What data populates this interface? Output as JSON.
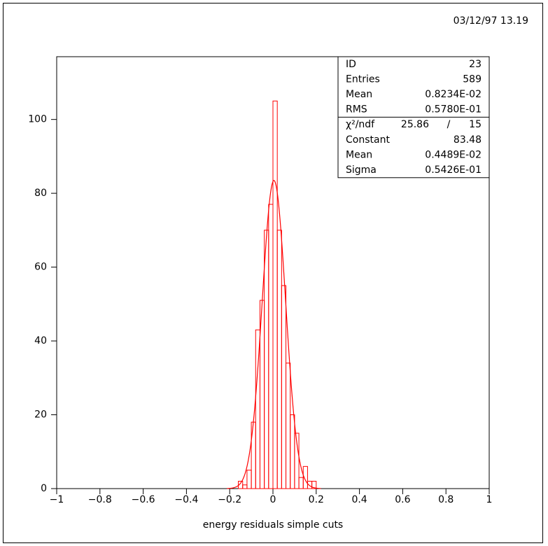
{
  "chart_data": {
    "type": "histogram",
    "timestamp": "03/12/97  13.19",
    "xlabel": "energy residuals simple cuts",
    "bins": [
      -0.16,
      -0.14,
      -0.12,
      -0.1,
      -0.08,
      -0.06,
      -0.04,
      -0.02,
      0,
      0.02,
      0.04,
      0.06,
      0.08,
      0.1,
      0.12,
      0.14,
      0.16,
      0.18,
      0.2
    ],
    "values": [
      2,
      1,
      5,
      18,
      43,
      51,
      70,
      77,
      105,
      70,
      55,
      34,
      20,
      15,
      3,
      6,
      2,
      2
    ],
    "color": "#ff0000",
    "xlim": [
      -1,
      1
    ],
    "xticks": [
      {
        "value": -1,
        "label": "−1"
      },
      {
        "value": -0.8,
        "label": "−0.8"
      },
      {
        "value": -0.6,
        "label": "−0.6"
      },
      {
        "value": -0.4,
        "label": "−0.4"
      },
      {
        "value": -0.2,
        "label": "−0.2"
      },
      0,
      0.2,
      0.4,
      0.6,
      0.8,
      1
    ],
    "ylim": [
      0,
      117
    ],
    "yticks": [
      0,
      20,
      40,
      60,
      80,
      100
    ],
    "stats": [
      {
        "name": "ID",
        "value": 23
      },
      {
        "name": "Entries",
        "value": 589
      },
      {
        "name": "Mean",
        "value": "0.8234E-02"
      },
      {
        "name": "RMS",
        "value": "0.5780E-01"
      }
    ],
    "fit": {
      "chi2_name": "χ²/ndf",
      "chi2": 25.86,
      "separator": "/",
      "ndf": 15,
      "params": [
        {
          "name": "Constant",
          "value": 83.48
        },
        {
          "name": "Mean",
          "value": 0.004489,
          "label": "0.4489E-02"
        },
        {
          "name": "Sigma",
          "value": 0.05426,
          "label": "0.5426E-01"
        }
      ]
    }
  }
}
